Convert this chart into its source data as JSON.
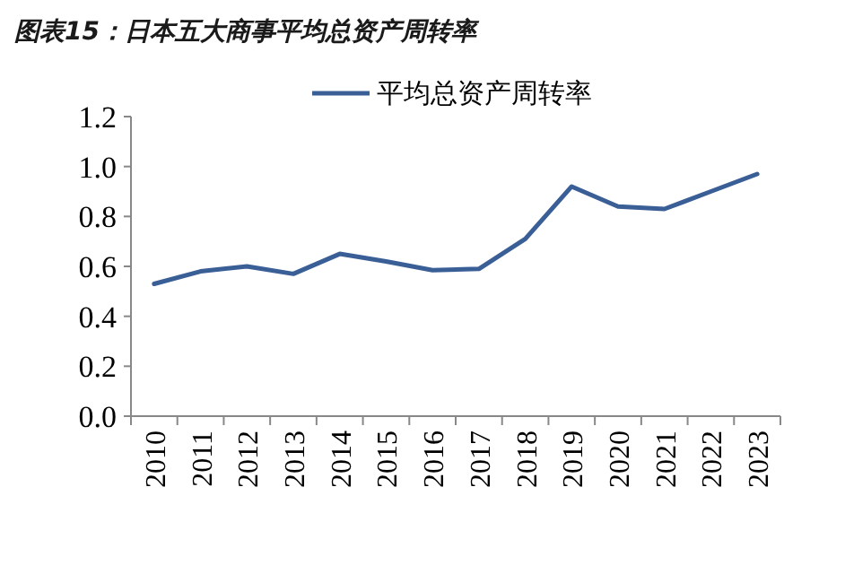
{
  "chart_data": {
    "type": "line",
    "title": "图表15：日本五大商事平均总资产周转率",
    "categories": [
      "2010",
      "2011",
      "2012",
      "2013",
      "2014",
      "2015",
      "2016",
      "2017",
      "2018",
      "2019",
      "2020",
      "2021",
      "2022",
      "2023"
    ],
    "series": [
      {
        "name": "平均总资产周转率",
        "color": "#3a5f96",
        "values": [
          0.53,
          0.58,
          0.6,
          0.57,
          0.65,
          0.62,
          0.585,
          0.59,
          0.71,
          0.92,
          0.84,
          0.83,
          0.9,
          0.97
        ]
      }
    ],
    "ylim": [
      0,
      1.2
    ],
    "yticks": [
      {
        "value": 0,
        "label": "0.0"
      },
      0.2,
      0.4,
      0.6,
      0.8,
      {
        "value": 1,
        "label": "1.0"
      },
      1.2
    ],
    "legend": "top",
    "grid": false,
    "marker": "none",
    "line_style": "solid"
  }
}
